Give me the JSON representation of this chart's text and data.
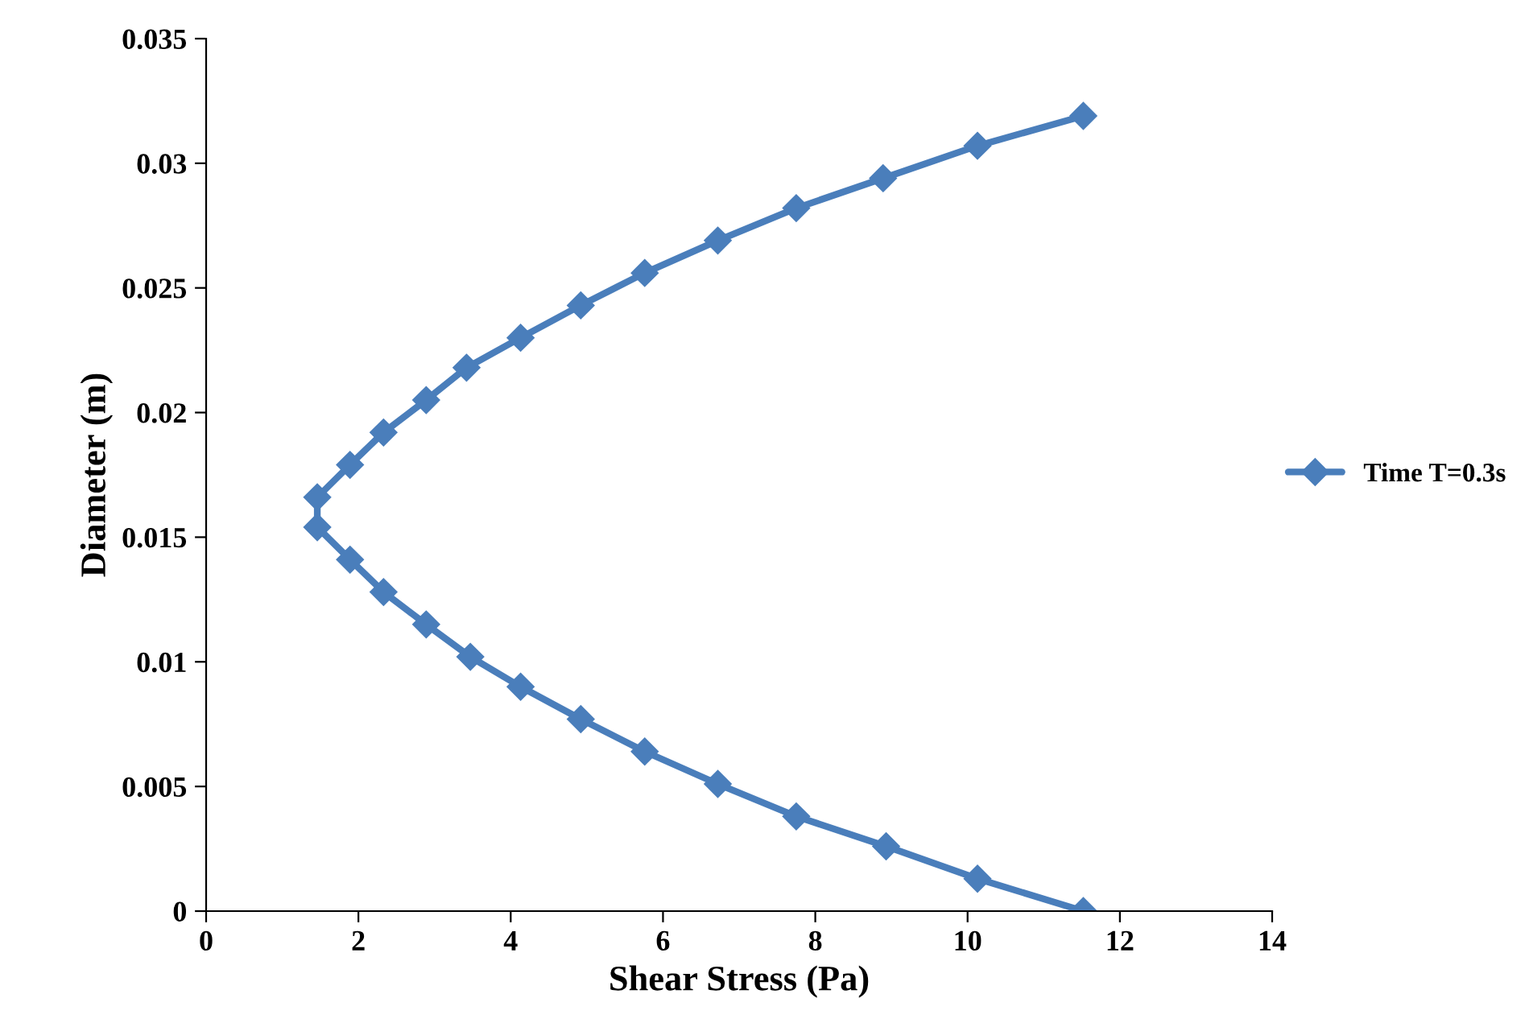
{
  "chart_data": {
    "type": "line",
    "xlabel": "Shear Stress (Pa)",
    "ylabel": "Diameter (m)",
    "series": [
      {
        "name": "Time T=0.3s",
        "color": "#4a7ebb",
        "x": [
          11.52,
          10.13,
          8.89,
          7.75,
          6.72,
          5.76,
          4.92,
          4.13,
          3.42,
          2.89,
          2.33,
          1.89,
          1.46,
          1.46,
          1.89,
          2.33,
          2.89,
          3.47,
          4.13,
          4.92,
          5.76,
          6.72,
          7.75,
          8.93,
          10.13,
          11.52
        ],
        "values": [
          0.0319,
          0.0307,
          0.0294,
          0.0282,
          0.0269,
          0.0256,
          0.0243,
          0.023,
          0.0218,
          0.0205,
          0.0192,
          0.0179,
          0.0166,
          0.0154,
          0.0141,
          0.0128,
          0.0115,
          0.0102,
          0.009,
          0.0077,
          0.0064,
          0.0051,
          0.0038,
          0.0026,
          0.0013,
          0.0
        ]
      }
    ],
    "xlim": [
      0,
      14
    ],
    "xticks": [
      0,
      2,
      4,
      6,
      8,
      10,
      12,
      14
    ],
    "ylim": [
      0,
      0.035
    ],
    "yticks": [
      0,
      0.005,
      0.01,
      0.015,
      0.02,
      0.025,
      0.03,
      0.035
    ],
    "grid": false,
    "legend": "right",
    "marker": "diamond",
    "line_style": "solid"
  }
}
